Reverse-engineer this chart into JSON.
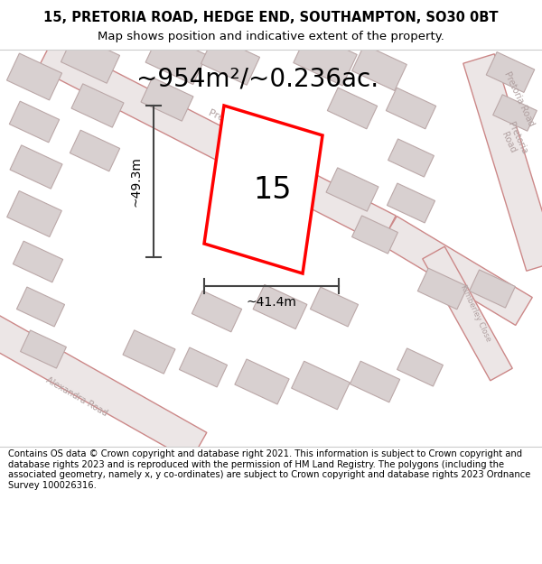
{
  "title": "15, PRETORIA ROAD, HEDGE END, SOUTHAMPTON, SO30 0BT",
  "subtitle": "Map shows position and indicative extent of the property.",
  "footer": "Contains OS data © Crown copyright and database right 2021. This information is subject to Crown copyright and database rights 2023 and is reproduced with the permission of HM Land Registry. The polygons (including the associated geometry, namely x, y co-ordinates) are subject to Crown copyright and database rights 2023 Ordnance Survey 100026316.",
  "area_label": "~954m²/~0.236ac.",
  "number_label": "15",
  "width_label": "~41.4m",
  "height_label": "~49.3m",
  "map_bg": "#f2eeee",
  "road_fill": "#ece6e6",
  "road_edge": "#cc8888",
  "building_fill": "#d8d0d0",
  "building_edge": "#bba8a8",
  "highlight_color": "#ff0000",
  "dim_line_color": "#444444",
  "title_fontsize": 10.5,
  "subtitle_fontsize": 9.5,
  "footer_fontsize": 7.2,
  "area_label_fontsize": 20,
  "number_label_fontsize": 24,
  "dim_fontsize": 10,
  "road_label_color": "#b0a0a0",
  "road_label_fontsize": 8
}
